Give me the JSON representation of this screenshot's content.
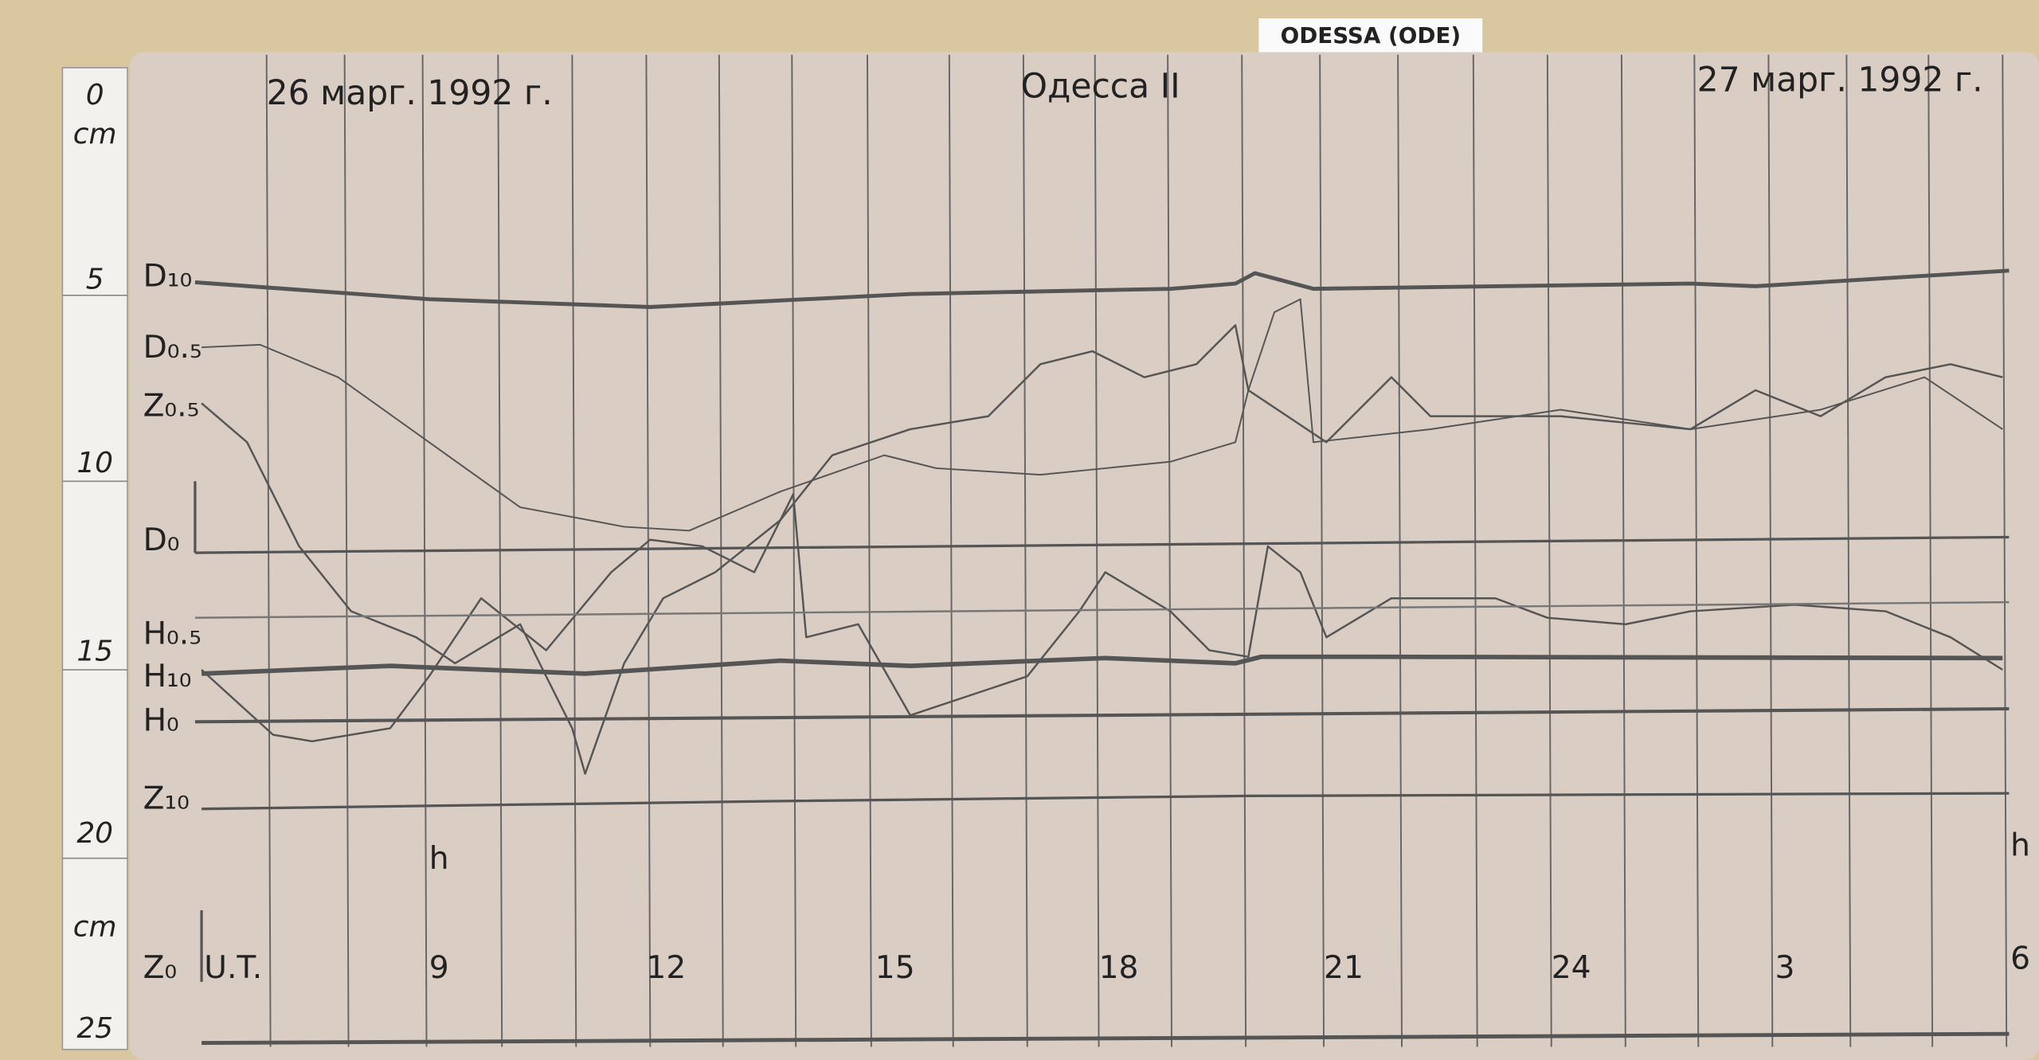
{
  "tag": "ODESSA (ODE)",
  "header": {
    "date_left": "26 марг. 1992 г.",
    "title": "Одесса II",
    "date_right": "27 марг. 1992 г."
  },
  "ruler": {
    "labels": [
      "0",
      "cm",
      "5",
      "10",
      "15",
      "20",
      "cm",
      "25"
    ]
  },
  "traces": [
    "D₁₀",
    "D₀.₅",
    "Z₀.₅",
    "D₀",
    "H₀.₅",
    "H₁₀",
    "H₀",
    "Z₁₀",
    "Z₀"
  ],
  "hours": {
    "unit_left": "h",
    "unit_right": "h",
    "ut": "U.T.",
    "labels": [
      "9",
      "12",
      "15",
      "18",
      "21",
      "24",
      "3",
      "6"
    ]
  }
}
